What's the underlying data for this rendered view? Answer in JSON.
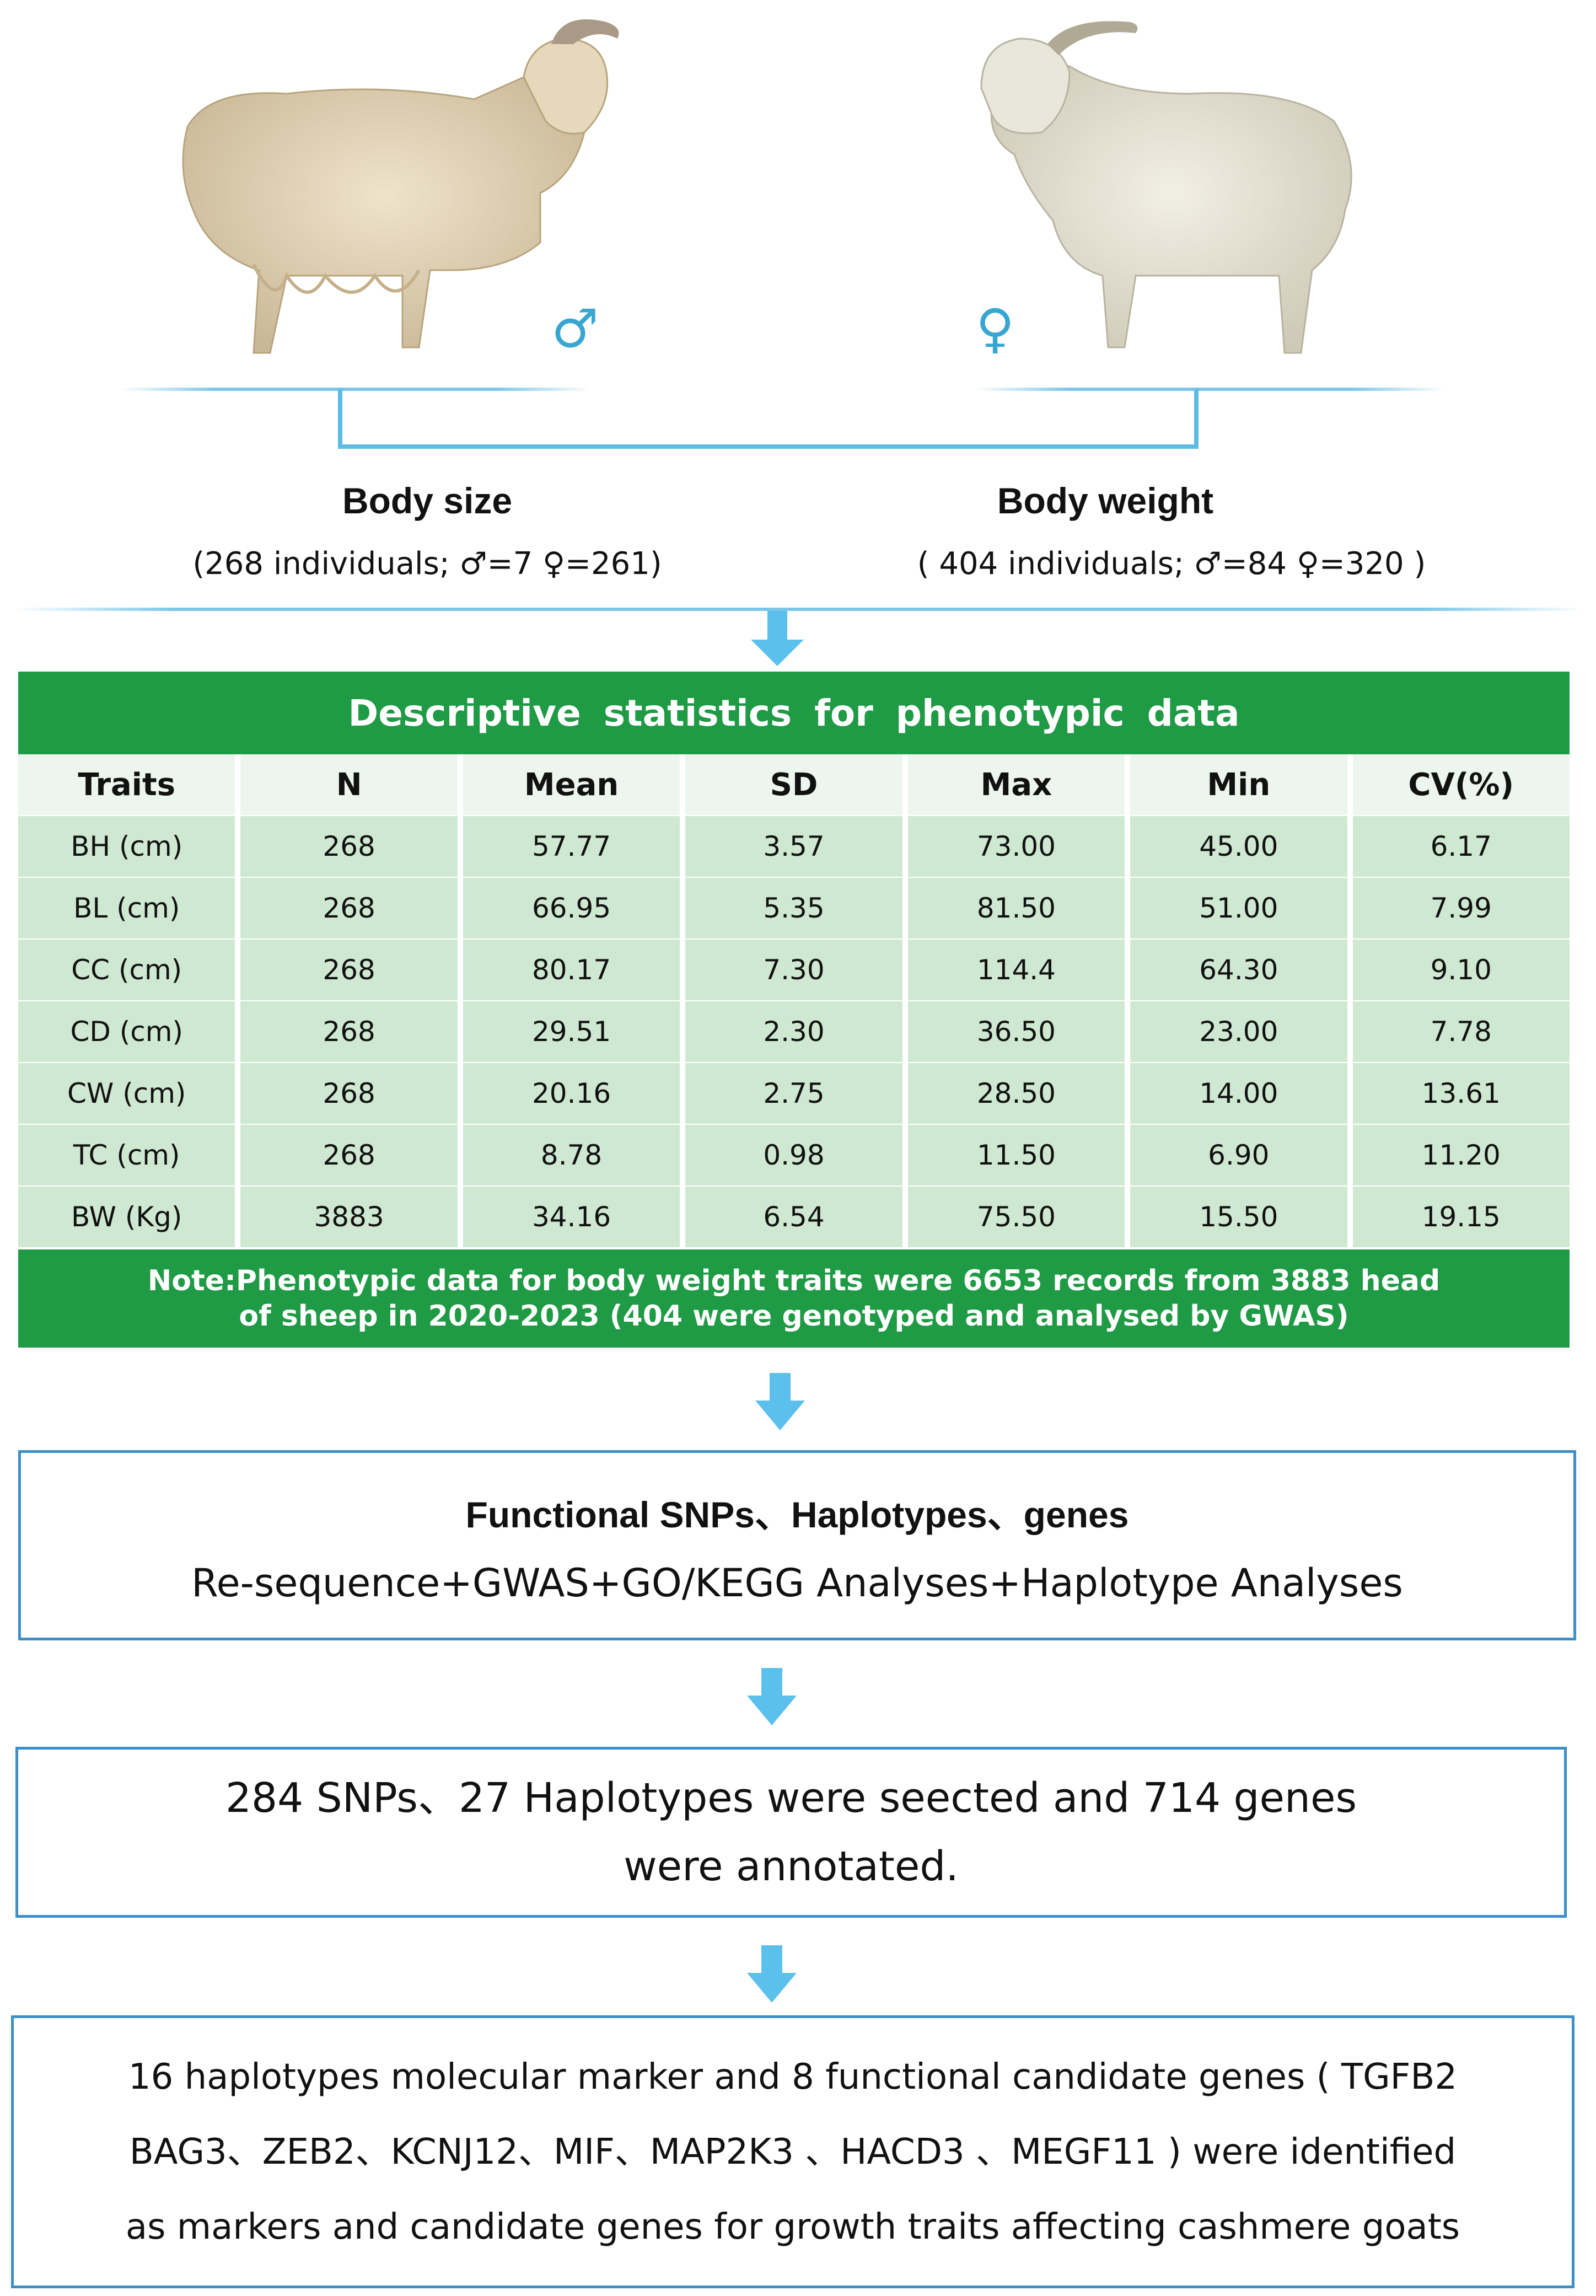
{
  "groups": [
    {
      "title": "Body size",
      "subtitle": "(268 individuals;  ♂=7 ♀=261)",
      "sex_symbol": "♂"
    },
    {
      "title": "Body weight",
      "subtitle": "( 404 individuals;  ♂=84   ♀=320 )",
      "sex_symbol": "♀"
    }
  ],
  "table": {
    "title": "Descriptive  statistics  for  phenotypic  data",
    "columns": [
      "Traits",
      "N",
      "Mean",
      "SD",
      "Max",
      "Min",
      "CV(%)"
    ],
    "rows": [
      [
        "BH (cm)",
        "268",
        "57.77",
        "3.57",
        "73.00",
        "45.00",
        "6.17"
      ],
      [
        "BL  (cm)",
        "268",
        "66.95",
        "5.35",
        "81.50",
        "51.00",
        "7.99"
      ],
      [
        "CC (cm)",
        "268",
        "80.17",
        "7.30",
        "114.4",
        "64.30",
        "9.10"
      ],
      [
        "CD (cm)",
        "268",
        "29.51",
        "2.30",
        "36.50",
        "23.00",
        "7.78"
      ],
      [
        "CW (cm)",
        "268",
        "20.16",
        "2.75",
        "28.50",
        "14.00",
        "13.61"
      ],
      [
        "TC (cm)",
        "268",
        "8.78",
        "0.98",
        "11.50",
        "6.90",
        "11.20"
      ],
      [
        "BW (Kg)",
        "3883",
        "34.16",
        "6.54",
        "75.50",
        "15.50",
        "19.15"
      ]
    ],
    "note_line1": "Note:Phenotypic data for body weight traits were 6653 records from 3883 head",
    "note_line2": "of sheep in 2020-2023 (404 were genotyped and analysed by GWAS)"
  },
  "step1": {
    "title": "Functional SNPs、Haplotypes、genes",
    "methods": "Re-sequence+GWAS+GO/KEGG Analyses+Haplotype Analyses"
  },
  "step2": {
    "line1": "284 SNPs、27 Haplotypes were seected and 714 genes",
    "line2": "were annotated."
  },
  "step3": {
    "line1": "16 haplotypes molecular marker and 8 functional candidate genes ( TGFB2",
    "line2": "BAG3、ZEB2、KCNJ12、MIF、MAP2K3 、HACD3 、MEGF11 ) were identified",
    "line3": "as markers and candidate genes for growth traits affecting cashmere goats"
  },
  "colors": {
    "accent_green": "#1f9a45",
    "light_green": "#cfe8d2",
    "box_blue": "#3d8fc6",
    "arrow_blue": "#5bc0eb"
  }
}
